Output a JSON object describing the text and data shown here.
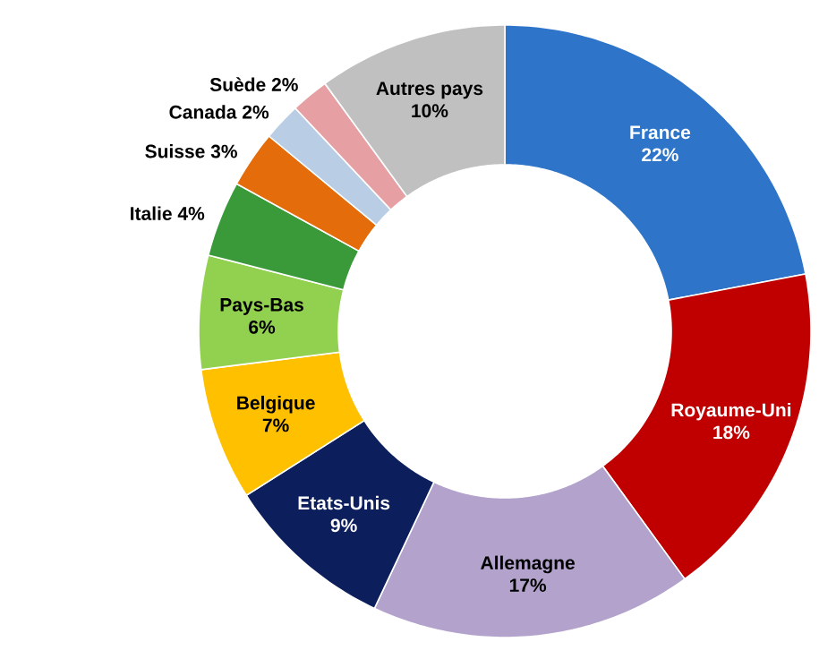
{
  "chart_data": {
    "type": "donut",
    "categories": [
      "France",
      "Royaume-Uni",
      "Allemagne",
      "Etats-Unis",
      "Belgique",
      "Pays-Bas",
      "Italie",
      "Suisse",
      "Canada",
      "Suède",
      "Autres pays"
    ],
    "values": [
      22,
      18,
      17,
      9,
      7,
      6,
      4,
      3,
      2,
      2,
      10
    ],
    "value_labels": [
      "22%",
      "18%",
      "17%",
      "9%",
      "7%",
      "6%",
      "4%",
      "3%",
      "2%",
      "2%",
      "10%"
    ],
    "colors": [
      "#2e75c9",
      "#c00000",
      "#b3a3cc",
      "#0c1f5c",
      "#ffc000",
      "#92d050",
      "#3a9a3a",
      "#e46c0a",
      "#b9cde5",
      "#e6a0a4",
      "#c0c0c0"
    ]
  }
}
